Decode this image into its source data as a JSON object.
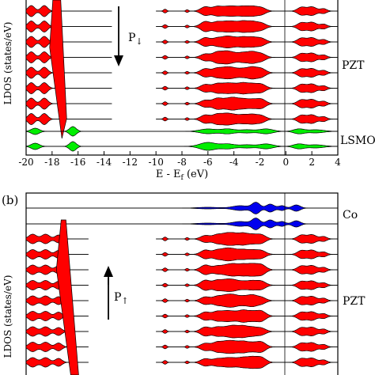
{
  "chart_data": [
    {
      "type": "area",
      "panel": "",
      "xlabel_main": "E - E",
      "xlabel_sub": "f",
      "xlabel_unit": " (eV)",
      "ylabel": "LDOS (states/eV)",
      "xlim": [
        -20,
        4
      ],
      "xticks": [
        -20,
        -18,
        -16,
        -14,
        -12,
        -10,
        -8,
        -6,
        -4,
        -2,
        0,
        2,
        4
      ],
      "fermi_line": 0,
      "arrow_label": "P",
      "arrow_sub": "↓",
      "arrow_direction": "down",
      "groups": [
        {
          "label": "PZT",
          "color": "#ff0000",
          "layers": 8
        },
        {
          "label": "LSMO",
          "color": "#00ee00",
          "layers": 2
        }
      ]
    },
    {
      "type": "area",
      "panel": "(b)",
      "xlabel_main": "",
      "ylabel": "LDOS (states/eV)",
      "xlim": [
        -20,
        4
      ],
      "fermi_line": 0,
      "arrow_label": "P",
      "arrow_sub": "↑",
      "arrow_direction": "up",
      "groups": [
        {
          "label": "Co",
          "color": "#0000ee",
          "layers": 2
        },
        {
          "label": "PZT",
          "color": "#ff0000",
          "layers": 9
        }
      ]
    }
  ]
}
